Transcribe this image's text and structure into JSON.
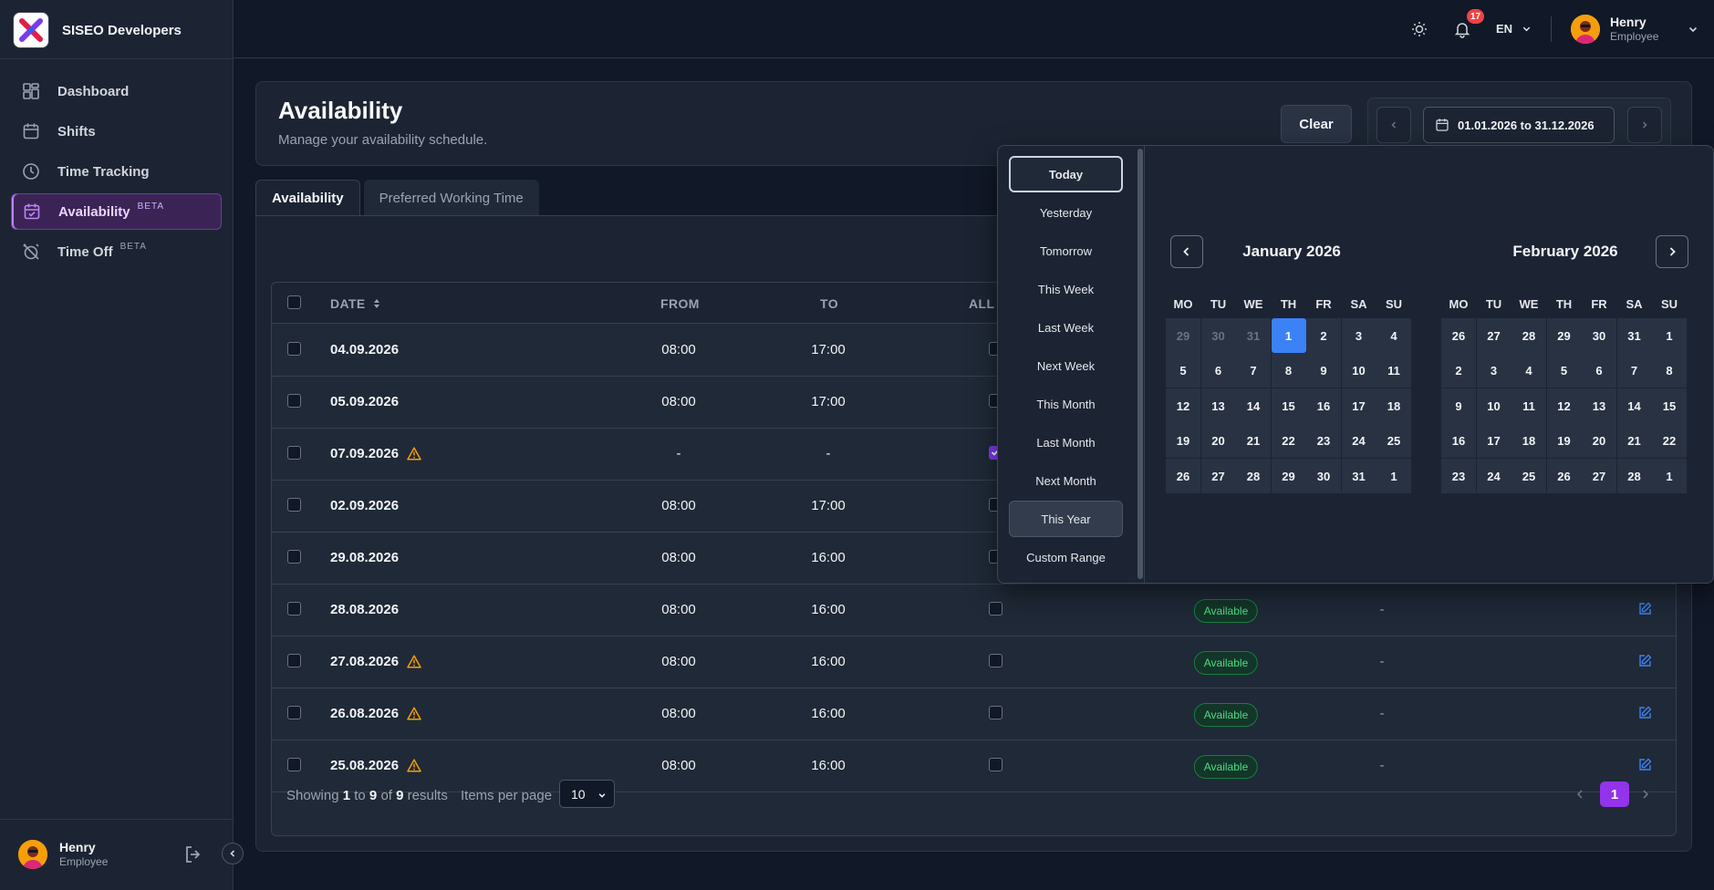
{
  "app": {
    "name": "SISEO Developers"
  },
  "sidebar": {
    "items": [
      {
        "label": "Dashboard",
        "icon": "dashboard-icon",
        "beta": ""
      },
      {
        "label": "Shifts",
        "icon": "calendar-icon",
        "beta": ""
      },
      {
        "label": "Time Tracking",
        "icon": "clock-icon",
        "beta": ""
      },
      {
        "label": "Availability",
        "icon": "calendar-check-icon",
        "beta": "BETA",
        "active": true
      },
      {
        "label": "Time Off",
        "icon": "alarm-off-icon",
        "beta": "BETA"
      }
    ],
    "user": {
      "name": "Henry",
      "role": "Employee"
    }
  },
  "header": {
    "notifications_count": "17",
    "language": "EN",
    "user": {
      "name": "Henry",
      "role": "Employee"
    }
  },
  "page": {
    "title": "Availability",
    "subtitle": "Manage your availability schedule.",
    "clear_label": "Clear",
    "date_range": "01.01.2026 to 31.12.2026"
  },
  "tabs": [
    {
      "label": "Availability",
      "active": true
    },
    {
      "label": "Preferred Working Time",
      "active": false
    }
  ],
  "table": {
    "columns": {
      "date": "DATE",
      "from": "FROM",
      "to": "TO",
      "all_day": "ALL D"
    },
    "rows": [
      {
        "date": "04.09.2026",
        "from": "08:00",
        "to": "17:00",
        "warning": false,
        "all_day": false,
        "status": "",
        "note": ""
      },
      {
        "date": "05.09.2026",
        "from": "08:00",
        "to": "17:00",
        "warning": false,
        "all_day": false,
        "status": "",
        "note": ""
      },
      {
        "date": "07.09.2026",
        "from": "-",
        "to": "-",
        "warning": true,
        "all_day": true,
        "status": "",
        "note": ""
      },
      {
        "date": "02.09.2026",
        "from": "08:00",
        "to": "17:00",
        "warning": false,
        "all_day": false,
        "status": "",
        "note": ""
      },
      {
        "date": "29.08.2026",
        "from": "08:00",
        "to": "16:00",
        "warning": false,
        "all_day": false,
        "status": "",
        "note": ""
      },
      {
        "date": "28.08.2026",
        "from": "08:00",
        "to": "16:00",
        "warning": false,
        "all_day": false,
        "status": "Available",
        "note": "-"
      },
      {
        "date": "27.08.2026",
        "from": "08:00",
        "to": "16:00",
        "warning": true,
        "all_day": false,
        "status": "Available",
        "note": "-"
      },
      {
        "date": "26.08.2026",
        "from": "08:00",
        "to": "16:00",
        "warning": true,
        "all_day": false,
        "status": "Available",
        "note": "-"
      },
      {
        "date": "25.08.2026",
        "from": "08:00",
        "to": "16:00",
        "warning": true,
        "all_day": false,
        "status": "Available",
        "note": "-"
      }
    ],
    "footer": {
      "showing_prefix": "Showing",
      "from": "1",
      "to_word": "to",
      "to": "9",
      "of_word": "of",
      "total": "9",
      "results_word": "results",
      "items_per_page_label": "Items per page",
      "items_per_page": "10",
      "current_page": "1"
    }
  },
  "picker": {
    "presets": [
      {
        "label": "Today",
        "state": "focus"
      },
      {
        "label": "Yesterday",
        "state": ""
      },
      {
        "label": "Tomorrow",
        "state": ""
      },
      {
        "label": "This Week",
        "state": ""
      },
      {
        "label": "Last Week",
        "state": ""
      },
      {
        "label": "Next Week",
        "state": ""
      },
      {
        "label": "This Month",
        "state": ""
      },
      {
        "label": "Last Month",
        "state": ""
      },
      {
        "label": "Next Month",
        "state": ""
      },
      {
        "label": "This Year",
        "state": "selected"
      },
      {
        "label": "Custom Range",
        "state": ""
      }
    ],
    "weekdays": [
      "MO",
      "TU",
      "WE",
      "TH",
      "FR",
      "SA",
      "SU"
    ],
    "months": [
      {
        "title": "January 2026",
        "weeks": [
          [
            [
              "29",
              "m"
            ],
            [
              "30",
              "m"
            ],
            [
              "31",
              "m"
            ],
            [
              "1",
              "t"
            ],
            [
              "2",
              ""
            ],
            [
              "3",
              ""
            ],
            [
              "4",
              ""
            ]
          ],
          [
            [
              "5",
              ""
            ],
            [
              "6",
              ""
            ],
            [
              "7",
              ""
            ],
            [
              "8",
              ""
            ],
            [
              "9",
              ""
            ],
            [
              "10",
              ""
            ],
            [
              "11",
              ""
            ]
          ],
          [
            [
              "12",
              ""
            ],
            [
              "13",
              ""
            ],
            [
              "14",
              ""
            ],
            [
              "15",
              ""
            ],
            [
              "16",
              ""
            ],
            [
              "17",
              ""
            ],
            [
              "18",
              ""
            ]
          ],
          [
            [
              "19",
              ""
            ],
            [
              "20",
              ""
            ],
            [
              "21",
              ""
            ],
            [
              "22",
              ""
            ],
            [
              "23",
              ""
            ],
            [
              "24",
              ""
            ],
            [
              "25",
              ""
            ]
          ],
          [
            [
              "26",
              ""
            ],
            [
              "27",
              ""
            ],
            [
              "28",
              ""
            ],
            [
              "29",
              ""
            ],
            [
              "30",
              ""
            ],
            [
              "31",
              ""
            ],
            [
              "1",
              ""
            ]
          ]
        ]
      },
      {
        "title": "February 2026",
        "weeks": [
          [
            [
              "26",
              ""
            ],
            [
              "27",
              ""
            ],
            [
              "28",
              ""
            ],
            [
              "29",
              ""
            ],
            [
              "30",
              ""
            ],
            [
              "31",
              ""
            ],
            [
              "1",
              ""
            ]
          ],
          [
            [
              "2",
              ""
            ],
            [
              "3",
              ""
            ],
            [
              "4",
              ""
            ],
            [
              "5",
              ""
            ],
            [
              "6",
              ""
            ],
            [
              "7",
              ""
            ],
            [
              "8",
              ""
            ]
          ],
          [
            [
              "9",
              ""
            ],
            [
              "10",
              ""
            ],
            [
              "11",
              ""
            ],
            [
              "12",
              ""
            ],
            [
              "13",
              ""
            ],
            [
              "14",
              ""
            ],
            [
              "15",
              ""
            ]
          ],
          [
            [
              "16",
              ""
            ],
            [
              "17",
              ""
            ],
            [
              "18",
              ""
            ],
            [
              "19",
              ""
            ],
            [
              "20",
              ""
            ],
            [
              "21",
              ""
            ],
            [
              "22",
              ""
            ]
          ],
          [
            [
              "23",
              ""
            ],
            [
              "24",
              ""
            ],
            [
              "25",
              ""
            ],
            [
              "26",
              ""
            ],
            [
              "27",
              ""
            ],
            [
              "28",
              ""
            ],
            [
              "1",
              ""
            ]
          ]
        ]
      }
    ]
  },
  "colors": {
    "accent": "#9333ea",
    "today": "#3b82f6",
    "available": "#4ade80",
    "warning": "#f59e0b"
  }
}
